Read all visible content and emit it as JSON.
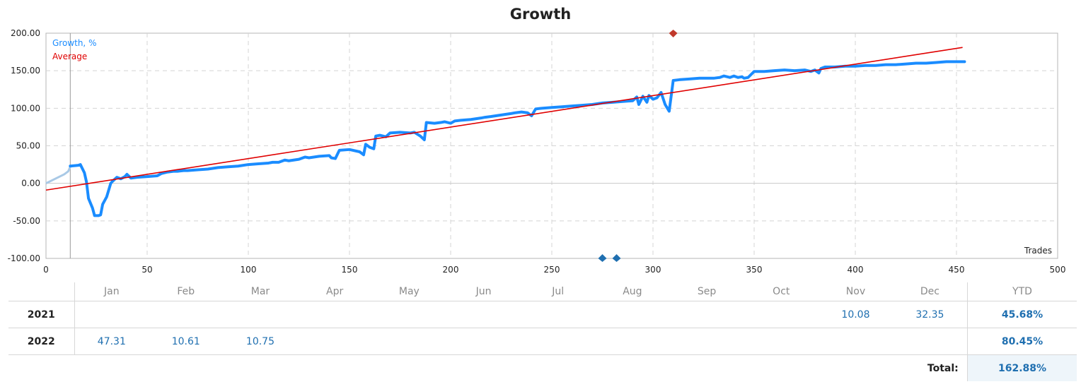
{
  "chart_data": {
    "type": "line",
    "title": "Growth",
    "xlabel": "Trades",
    "ylabel": "",
    "xlim": [
      0,
      500
    ],
    "ylim": [
      -100,
      200
    ],
    "x_ticks": [
      0,
      50,
      100,
      150,
      200,
      250,
      300,
      350,
      400,
      450,
      500
    ],
    "y_ticks": [
      "200.00",
      "150.00",
      "100.00",
      "50.00",
      "0.00",
      "-50.00",
      "-100.00"
    ],
    "grid": true,
    "legend": "top-left",
    "series": [
      {
        "name": "Growth, %",
        "color": "#1a8cff",
        "faded_points": [
          [
            0,
            0
          ],
          [
            3,
            4
          ],
          [
            6,
            8
          ],
          [
            9,
            12
          ],
          [
            11,
            16
          ],
          [
            12,
            22
          ]
        ],
        "points": [
          [
            12,
            23
          ],
          [
            16,
            24
          ],
          [
            17,
            25
          ],
          [
            19,
            14
          ],
          [
            20,
            2
          ],
          [
            21,
            -20
          ],
          [
            23,
            -33
          ],
          [
            24,
            -43
          ],
          [
            26,
            -43
          ],
          [
            27,
            -42
          ],
          [
            28,
            -28
          ],
          [
            30,
            -18
          ],
          [
            32,
            0
          ],
          [
            33,
            3
          ],
          [
            35,
            8
          ],
          [
            37,
            6
          ],
          [
            39,
            9
          ],
          [
            40,
            12
          ],
          [
            42,
            7
          ],
          [
            45,
            8
          ],
          [
            50,
            9
          ],
          [
            55,
            10
          ],
          [
            57,
            13
          ],
          [
            60,
            15
          ],
          [
            63,
            16
          ],
          [
            65,
            16
          ],
          [
            68,
            17
          ],
          [
            70,
            17
          ],
          [
            75,
            18
          ],
          [
            80,
            19
          ],
          [
            85,
            21
          ],
          [
            90,
            22
          ],
          [
            95,
            23
          ],
          [
            100,
            25
          ],
          [
            105,
            26
          ],
          [
            110,
            27
          ],
          [
            112,
            28
          ],
          [
            115,
            28
          ],
          [
            118,
            31
          ],
          [
            120,
            30
          ],
          [
            125,
            32
          ],
          [
            128,
            35
          ],
          [
            130,
            34
          ],
          [
            135,
            36
          ],
          [
            140,
            37
          ],
          [
            141,
            34
          ],
          [
            143,
            33
          ],
          [
            145,
            44
          ],
          [
            150,
            45
          ],
          [
            155,
            42
          ],
          [
            157,
            38
          ],
          [
            158,
            52
          ],
          [
            160,
            48
          ],
          [
            162,
            46
          ],
          [
            163,
            63
          ],
          [
            165,
            64
          ],
          [
            168,
            62
          ],
          [
            170,
            67
          ],
          [
            175,
            68
          ],
          [
            180,
            67
          ],
          [
            182,
            68
          ],
          [
            185,
            63
          ],
          [
            187,
            58
          ],
          [
            188,
            81
          ],
          [
            192,
            80
          ],
          [
            195,
            81
          ],
          [
            197,
            82
          ],
          [
            200,
            80
          ],
          [
            202,
            83
          ],
          [
            205,
            84
          ],
          [
            210,
            85
          ],
          [
            215,
            87
          ],
          [
            217,
            88
          ],
          [
            220,
            89
          ],
          [
            225,
            91
          ],
          [
            230,
            93
          ],
          [
            232,
            94
          ],
          [
            235,
            95
          ],
          [
            238,
            94
          ],
          [
            240,
            90
          ],
          [
            242,
            99
          ],
          [
            245,
            100
          ],
          [
            250,
            101
          ],
          [
            255,
            102
          ],
          [
            260,
            103
          ],
          [
            265,
            104
          ],
          [
            270,
            105
          ],
          [
            275,
            107
          ],
          [
            280,
            108
          ],
          [
            285,
            109
          ],
          [
            290,
            110
          ],
          [
            292,
            115
          ],
          [
            293,
            105
          ],
          [
            295,
            116
          ],
          [
            297,
            108
          ],
          [
            298,
            117
          ],
          [
            300,
            112
          ],
          [
            302,
            114
          ],
          [
            304,
            121
          ],
          [
            306,
            105
          ],
          [
            308,
            96
          ],
          [
            310,
            137
          ],
          [
            313,
            138
          ],
          [
            318,
            139
          ],
          [
            323,
            140
          ],
          [
            330,
            140
          ],
          [
            333,
            141
          ],
          [
            335,
            143
          ],
          [
            338,
            141
          ],
          [
            340,
            143
          ],
          [
            342,
            141
          ],
          [
            344,
            142
          ],
          [
            345,
            140
          ],
          [
            347,
            141
          ],
          [
            350,
            149
          ],
          [
            355,
            149
          ],
          [
            360,
            150
          ],
          [
            365,
            151
          ],
          [
            370,
            150
          ],
          [
            375,
            151
          ],
          [
            378,
            149
          ],
          [
            380,
            151
          ],
          [
            382,
            147
          ],
          [
            383,
            153
          ],
          [
            385,
            155
          ],
          [
            390,
            155
          ],
          [
            395,
            156
          ],
          [
            400,
            156
          ],
          [
            405,
            157
          ],
          [
            410,
            157
          ],
          [
            415,
            158
          ],
          [
            420,
            158
          ],
          [
            425,
            159
          ],
          [
            430,
            160
          ],
          [
            435,
            160
          ],
          [
            440,
            161
          ],
          [
            445,
            162
          ],
          [
            450,
            162
          ],
          [
            454,
            162
          ]
        ]
      },
      {
        "name": "Average",
        "color": "#e00000",
        "points": [
          [
            0,
            -9
          ],
          [
            453,
            181
          ]
        ]
      }
    ],
    "markers": [
      {
        "x": 310,
        "y": 200,
        "direction": "down",
        "color": "#c0392b"
      },
      {
        "x": 275,
        "y": -100,
        "direction": "up",
        "color": "#1f6fb0"
      },
      {
        "x": 282,
        "y": -100,
        "direction": "up",
        "color": "#1f6fb0"
      }
    ],
    "vertical_line_x": 12
  },
  "table": {
    "months": [
      "Jan",
      "Feb",
      "Mar",
      "Apr",
      "May",
      "Jun",
      "Jul",
      "Aug",
      "Sep",
      "Oct",
      "Nov",
      "Dec"
    ],
    "ytd_label": "YTD",
    "rows": [
      {
        "year": "2021",
        "values": [
          "",
          "",
          "",
          "",
          "",
          "",
          "",
          "",
          "",
          "",
          "10.08",
          "32.35"
        ],
        "ytd": "45.68%"
      },
      {
        "year": "2022",
        "values": [
          "47.31",
          "10.61",
          "10.75",
          "",
          "",
          "",
          "",
          "",
          "",
          "",
          "",
          ""
        ],
        "ytd": "80.45%"
      }
    ],
    "total_label": "Total:",
    "total_value": "162.88%"
  }
}
